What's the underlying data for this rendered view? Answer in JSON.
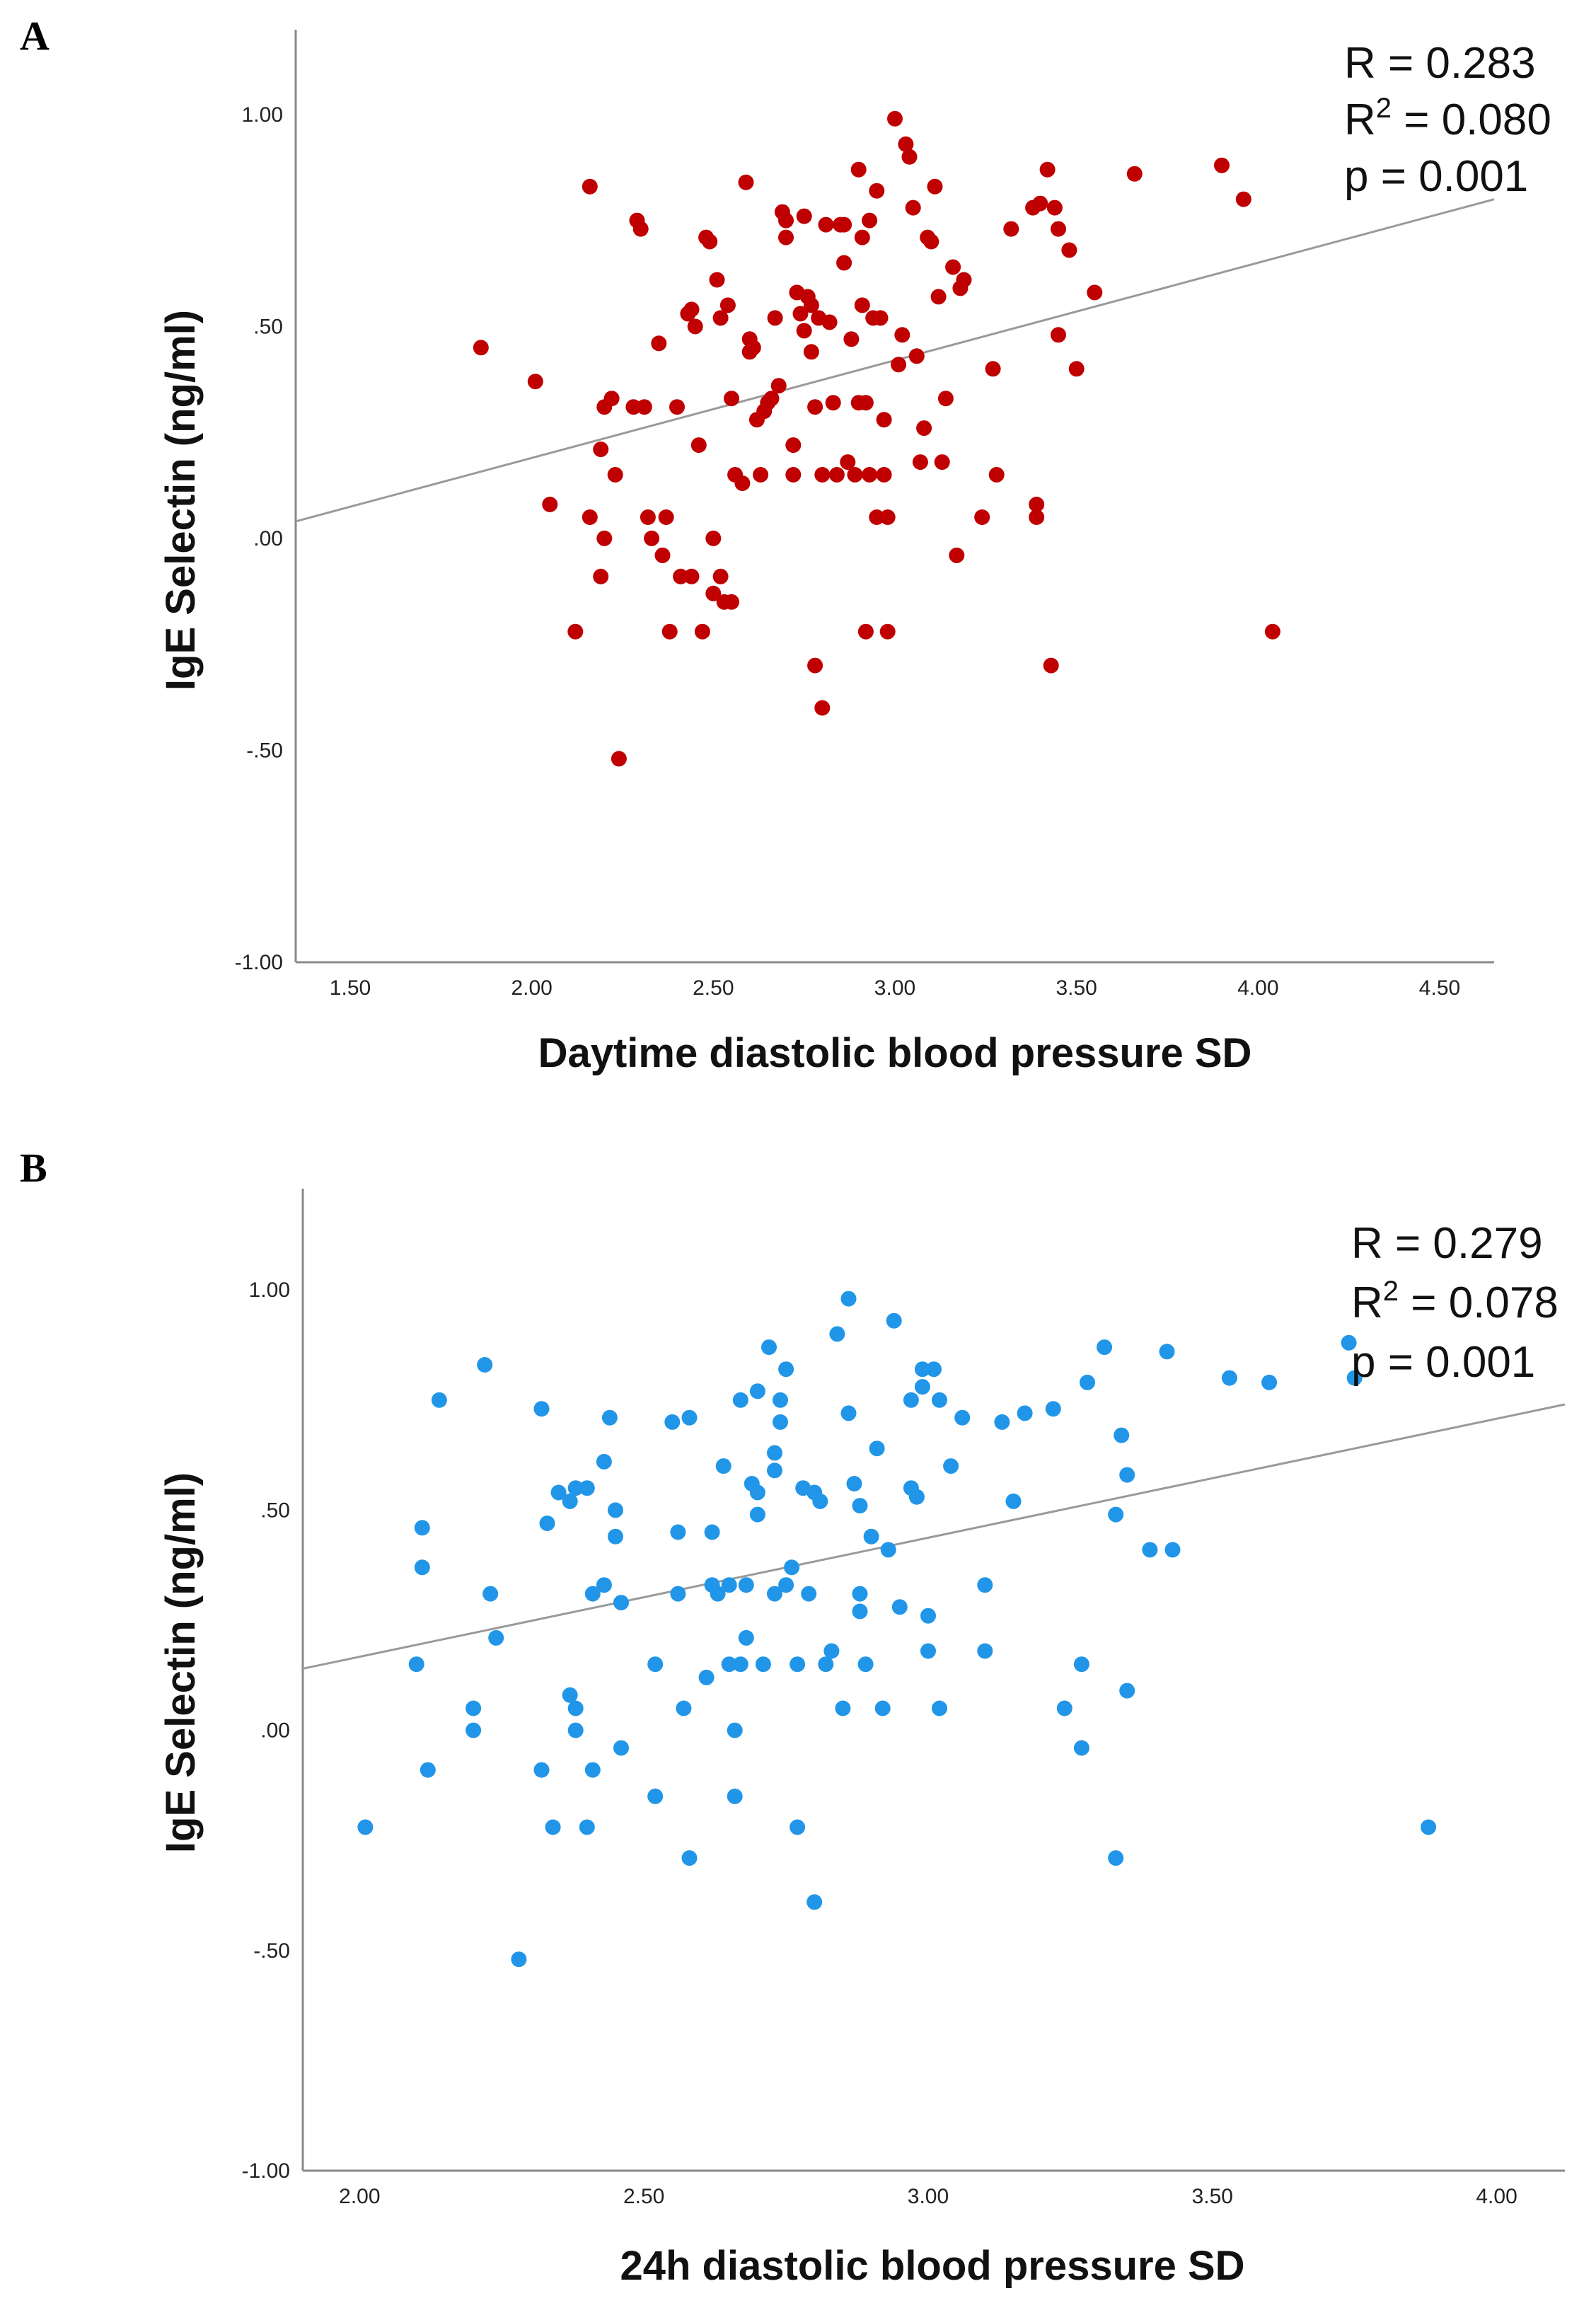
{
  "chart_data": [
    {
      "panel_label": "A",
      "type": "scatter",
      "title": "",
      "xlabel": "Daytime diastolic blood pressure SD",
      "ylabel": "IgE Selectin (ng/ml)",
      "xlim": [
        1.35,
        4.65
      ],
      "ylim": [
        -1.0,
        1.2
      ],
      "x_ticks": [
        1.5,
        2.0,
        2.5,
        3.0,
        3.5,
        4.0,
        4.5
      ],
      "x_tick_labels": [
        "1.50",
        "2.00",
        "2.50",
        "3.00",
        "3.50",
        "4.00",
        "4.50"
      ],
      "y_ticks": [
        1.0,
        0.5,
        0.0,
        -0.5,
        -1.0
      ],
      "y_tick_labels": [
        "1.00",
        ".50",
        ".00",
        "-.50",
        "-1.00"
      ],
      "grid": false,
      "marker_color": "#c00000",
      "line_color": "#9a9a9a",
      "fit_line": {
        "x": [
          1.35,
          4.65
        ],
        "y": [
          0.04,
          0.8
        ]
      },
      "stats": {
        "r": "R = 0.283",
        "r2_prefix": "R",
        "r2_sup": "2",
        "r2_value": " = 0.080",
        "p": "p = 0.001"
      },
      "points": [
        [
          1.86,
          0.45
        ],
        [
          2.01,
          0.37
        ],
        [
          2.05,
          0.08
        ],
        [
          2.12,
          -0.22
        ],
        [
          2.16,
          0.83
        ],
        [
          2.16,
          0.05
        ],
        [
          2.19,
          0.21
        ],
        [
          2.19,
          -0.09
        ],
        [
          2.2,
          0.31
        ],
        [
          2.2,
          0.0
        ],
        [
          2.22,
          0.33
        ],
        [
          2.23,
          0.15
        ],
        [
          2.24,
          -0.52
        ],
        [
          2.28,
          0.31
        ],
        [
          2.29,
          0.75
        ],
        [
          2.3,
          0.73
        ],
        [
          2.31,
          0.31
        ],
        [
          2.32,
          0.05
        ],
        [
          2.33,
          0.0
        ],
        [
          2.35,
          0.46
        ],
        [
          2.36,
          -0.04
        ],
        [
          2.37,
          0.05
        ],
        [
          2.38,
          -0.22
        ],
        [
          2.4,
          0.31
        ],
        [
          2.41,
          -0.09
        ],
        [
          2.43,
          0.53
        ],
        [
          2.44,
          0.54
        ],
        [
          2.44,
          -0.09
        ],
        [
          2.45,
          0.5
        ],
        [
          2.46,
          0.22
        ],
        [
          2.47,
          -0.22
        ],
        [
          2.48,
          0.71
        ],
        [
          2.49,
          0.7
        ],
        [
          2.5,
          0.0
        ],
        [
          2.5,
          -0.13
        ],
        [
          2.51,
          0.61
        ],
        [
          2.52,
          -0.09
        ],
        [
          2.52,
          0.52
        ],
        [
          2.53,
          -0.15
        ],
        [
          2.54,
          0.55
        ],
        [
          2.55,
          0.33
        ],
        [
          2.55,
          -0.15
        ],
        [
          2.56,
          0.15
        ],
        [
          2.58,
          0.13
        ],
        [
          2.59,
          0.84
        ],
        [
          2.6,
          0.44
        ],
        [
          2.6,
          0.47
        ],
        [
          2.61,
          0.45
        ],
        [
          2.62,
          0.28
        ],
        [
          2.63,
          0.15
        ],
        [
          2.64,
          0.3
        ],
        [
          2.65,
          0.32
        ],
        [
          2.66,
          0.33
        ],
        [
          2.67,
          0.52
        ],
        [
          2.68,
          0.36
        ],
        [
          2.69,
          0.77
        ],
        [
          2.7,
          0.71
        ],
        [
          2.7,
          0.75
        ],
        [
          2.72,
          0.15
        ],
        [
          2.72,
          0.22
        ],
        [
          2.73,
          0.58
        ],
        [
          2.74,
          0.53
        ],
        [
          2.75,
          0.49
        ],
        [
          2.75,
          0.76
        ],
        [
          2.76,
          0.57
        ],
        [
          2.77,
          0.55
        ],
        [
          2.77,
          0.44
        ],
        [
          2.78,
          -0.3
        ],
        [
          2.78,
          0.31
        ],
        [
          2.79,
          0.52
        ],
        [
          2.8,
          -0.4
        ],
        [
          2.8,
          0.15
        ],
        [
          2.81,
          0.74
        ],
        [
          2.82,
          0.51
        ],
        [
          2.83,
          0.32
        ],
        [
          2.84,
          0.15
        ],
        [
          2.85,
          0.74
        ],
        [
          2.86,
          0.65
        ],
        [
          2.86,
          0.74
        ],
        [
          2.87,
          0.18
        ],
        [
          2.88,
          0.47
        ],
        [
          2.89,
          0.15
        ],
        [
          2.9,
          0.32
        ],
        [
          2.9,
          0.87
        ],
        [
          2.91,
          0.71
        ],
        [
          2.91,
          0.55
        ],
        [
          2.92,
          -0.22
        ],
        [
          2.92,
          0.32
        ],
        [
          2.93,
          0.15
        ],
        [
          2.93,
          0.75
        ],
        [
          2.94,
          0.52
        ],
        [
          2.95,
          0.05
        ],
        [
          2.95,
          0.82
        ],
        [
          2.96,
          0.52
        ],
        [
          2.97,
          0.28
        ],
        [
          2.97,
          0.15
        ],
        [
          2.98,
          0.05
        ],
        [
          2.98,
          -0.22
        ],
        [
          3.0,
          0.99
        ],
        [
          3.01,
          0.41
        ],
        [
          3.02,
          0.48
        ],
        [
          3.03,
          0.93
        ],
        [
          3.04,
          0.9
        ],
        [
          3.05,
          0.78
        ],
        [
          3.06,
          0.43
        ],
        [
          3.07,
          0.18
        ],
        [
          3.08,
          0.26
        ],
        [
          3.09,
          0.71
        ],
        [
          3.1,
          0.7
        ],
        [
          3.11,
          0.83
        ],
        [
          3.12,
          0.57
        ],
        [
          3.13,
          0.18
        ],
        [
          3.14,
          0.33
        ],
        [
          3.16,
          0.64
        ],
        [
          3.17,
          -0.04
        ],
        [
          3.18,
          0.59
        ],
        [
          3.19,
          0.61
        ],
        [
          3.24,
          0.05
        ],
        [
          3.27,
          0.4
        ],
        [
          3.28,
          0.15
        ],
        [
          3.32,
          0.73
        ],
        [
          3.38,
          0.78
        ],
        [
          3.39,
          0.08
        ],
        [
          3.39,
          0.05
        ],
        [
          3.4,
          0.79
        ],
        [
          3.42,
          0.87
        ],
        [
          3.43,
          -0.3
        ],
        [
          3.44,
          0.78
        ],
        [
          3.45,
          0.73
        ],
        [
          3.45,
          0.48
        ],
        [
          3.48,
          0.68
        ],
        [
          3.5,
          0.4
        ],
        [
          3.55,
          0.58
        ],
        [
          3.66,
          0.86
        ],
        [
          3.9,
          0.88
        ],
        [
          3.96,
          0.8
        ],
        [
          4.04,
          -0.22
        ]
      ]
    },
    {
      "panel_label": "B",
      "type": "scatter",
      "title": "",
      "xlabel": "24h diastolic blood pressure SD",
      "ylabel": "IgE Selectin (ng/ml)",
      "xlim": [
        1.9,
        4.12
      ],
      "ylim": [
        -1.0,
        1.23
      ],
      "x_ticks": [
        2.0,
        2.5,
        3.0,
        3.5,
        4.0
      ],
      "x_tick_labels": [
        "2.00",
        "2.50",
        "3.00",
        "3.50",
        "4.00"
      ],
      "y_ticks": [
        1.0,
        0.5,
        0.0,
        -0.5,
        -1.0
      ],
      "y_tick_labels": [
        "1.00",
        ".50",
        ".00",
        "-.50",
        "-1.00"
      ],
      "grid": false,
      "marker_color": "#2196e8",
      "line_color": "#9a9a9a",
      "fit_line": {
        "x": [
          1.9,
          4.12
        ],
        "y": [
          0.14,
          0.74
        ]
      },
      "stats": {
        "r": "R = 0.279",
        "r2_prefix": "R",
        "r2_sup": "2",
        "r2_value": " = 0.078",
        "p": "p = 0.001"
      },
      "points": [
        [
          2.01,
          -0.22
        ],
        [
          2.1,
          0.15
        ],
        [
          2.11,
          0.46
        ],
        [
          2.11,
          0.37
        ],
        [
          2.12,
          -0.09
        ],
        [
          2.14,
          0.75
        ],
        [
          2.2,
          0.05
        ],
        [
          2.2,
          0.0
        ],
        [
          2.22,
          0.83
        ],
        [
          2.23,
          0.31
        ],
        [
          2.24,
          0.21
        ],
        [
          2.28,
          -0.52
        ],
        [
          2.32,
          0.73
        ],
        [
          2.32,
          -0.09
        ],
        [
          2.33,
          0.47
        ],
        [
          2.34,
          -0.22
        ],
        [
          2.35,
          0.54
        ],
        [
          2.37,
          0.52
        ],
        [
          2.37,
          0.08
        ],
        [
          2.38,
          0.55
        ],
        [
          2.38,
          0.0
        ],
        [
          2.38,
          0.05
        ],
        [
          2.4,
          0.55
        ],
        [
          2.4,
          -0.22
        ],
        [
          2.41,
          -0.09
        ],
        [
          2.41,
          0.31
        ],
        [
          2.43,
          0.61
        ],
        [
          2.43,
          0.33
        ],
        [
          2.44,
          0.71
        ],
        [
          2.45,
          0.5
        ],
        [
          2.45,
          0.44
        ],
        [
          2.46,
          0.29
        ],
        [
          2.46,
          -0.04
        ],
        [
          2.52,
          -0.15
        ],
        [
          2.52,
          0.15
        ],
        [
          2.55,
          0.7
        ],
        [
          2.56,
          0.45
        ],
        [
          2.56,
          0.31
        ],
        [
          2.57,
          0.05
        ],
        [
          2.58,
          0.71
        ],
        [
          2.58,
          -0.29
        ],
        [
          2.61,
          0.12
        ],
        [
          2.62,
          0.45
        ],
        [
          2.62,
          0.33
        ],
        [
          2.63,
          0.31
        ],
        [
          2.64,
          0.6
        ],
        [
          2.65,
          0.33
        ],
        [
          2.65,
          0.15
        ],
        [
          2.66,
          0.0
        ],
        [
          2.66,
          -0.15
        ],
        [
          2.67,
          0.75
        ],
        [
          2.67,
          0.15
        ],
        [
          2.68,
          0.33
        ],
        [
          2.68,
          0.21
        ],
        [
          2.69,
          0.56
        ],
        [
          2.7,
          0.54
        ],
        [
          2.7,
          0.49
        ],
        [
          2.7,
          0.77
        ],
        [
          2.71,
          0.15
        ],
        [
          2.72,
          0.87
        ],
        [
          2.73,
          0.63
        ],
        [
          2.73,
          0.31
        ],
        [
          2.73,
          0.59
        ],
        [
          2.74,
          0.7
        ],
        [
          2.74,
          0.75
        ],
        [
          2.75,
          0.82
        ],
        [
          2.75,
          0.33
        ],
        [
          2.76,
          0.37
        ],
        [
          2.77,
          -0.22
        ],
        [
          2.77,
          0.15
        ],
        [
          2.78,
          0.55
        ],
        [
          2.79,
          0.31
        ],
        [
          2.8,
          0.54
        ],
        [
          2.8,
          -0.39
        ],
        [
          2.81,
          0.52
        ],
        [
          2.82,
          0.15
        ],
        [
          2.83,
          0.18
        ],
        [
          2.84,
          0.9
        ],
        [
          2.85,
          0.05
        ],
        [
          2.86,
          0.72
        ],
        [
          2.86,
          0.98
        ],
        [
          2.87,
          0.56
        ],
        [
          2.88,
          0.27
        ],
        [
          2.88,
          0.51
        ],
        [
          2.88,
          0.31
        ],
        [
          2.89,
          0.15
        ],
        [
          2.9,
          0.44
        ],
        [
          2.91,
          0.64
        ],
        [
          2.92,
          0.05
        ],
        [
          2.93,
          0.41
        ],
        [
          2.94,
          0.93
        ],
        [
          2.95,
          0.28
        ],
        [
          2.97,
          0.55
        ],
        [
          2.97,
          0.75
        ],
        [
          2.98,
          0.53
        ],
        [
          2.99,
          0.82
        ],
        [
          2.99,
          0.78
        ],
        [
          3.0,
          0.18
        ],
        [
          3.0,
          0.26
        ],
        [
          3.01,
          0.82
        ],
        [
          3.02,
          0.75
        ],
        [
          3.02,
          0.05
        ],
        [
          3.04,
          0.6
        ],
        [
          3.06,
          0.71
        ],
        [
          3.1,
          0.33
        ],
        [
          3.1,
          0.18
        ],
        [
          3.13,
          0.7
        ],
        [
          3.15,
          0.52
        ],
        [
          3.17,
          0.72
        ],
        [
          3.22,
          0.73
        ],
        [
          3.24,
          0.05
        ],
        [
          3.27,
          -0.04
        ],
        [
          3.27,
          0.15
        ],
        [
          3.28,
          0.79
        ],
        [
          3.31,
          0.87
        ],
        [
          3.33,
          0.49
        ],
        [
          3.33,
          -0.29
        ],
        [
          3.34,
          0.67
        ],
        [
          3.35,
          0.58
        ],
        [
          3.35,
          0.09
        ],
        [
          3.39,
          0.41
        ],
        [
          3.42,
          0.86
        ],
        [
          3.43,
          0.41
        ],
        [
          3.53,
          0.8
        ],
        [
          3.6,
          0.79
        ],
        [
          3.74,
          0.88
        ],
        [
          3.75,
          0.8
        ],
        [
          3.88,
          -0.22
        ]
      ]
    }
  ]
}
